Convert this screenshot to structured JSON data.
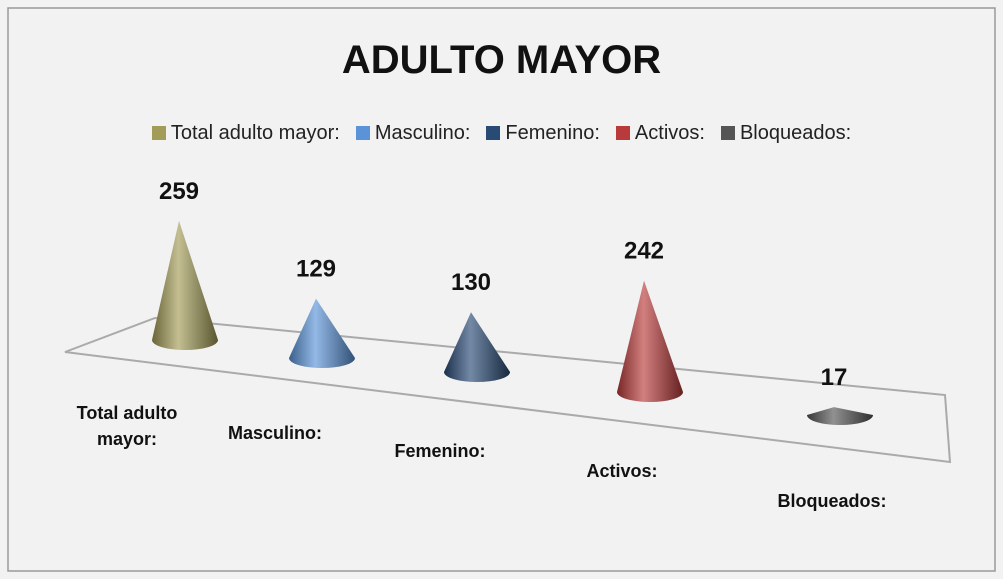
{
  "chart_data": {
    "type": "cone",
    "title": "ADULTO MAYOR",
    "categories": [
      "Total adulto mayor:",
      "Masculino:",
      "Femenino:",
      "Activos:",
      "Bloqueados:"
    ],
    "values": [
      259,
      129,
      130,
      242,
      17
    ],
    "colors": [
      "#a39c58",
      "#5b93d8",
      "#284a75",
      "#b93a3a",
      "#555555"
    ],
    "legend": "top"
  }
}
